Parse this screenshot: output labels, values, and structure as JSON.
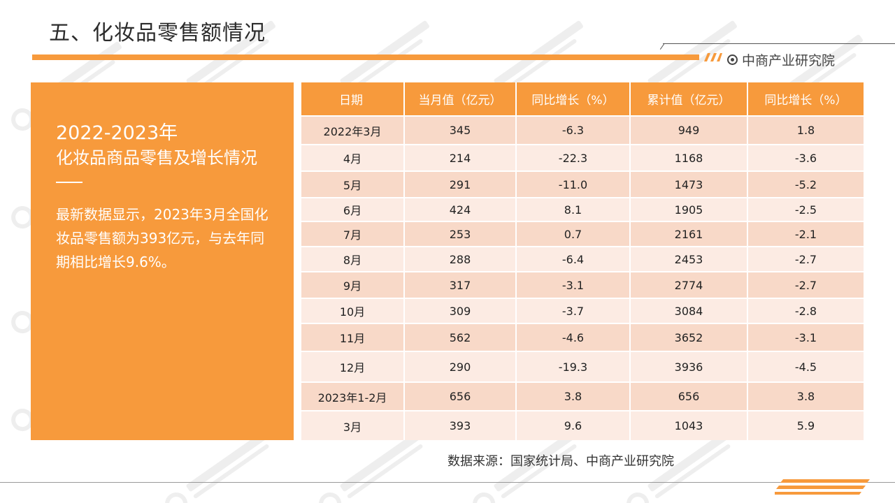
{
  "header": {
    "title": "五、化妆品零售额情况",
    "brand": "中商产业研究院"
  },
  "left_panel": {
    "year_range": "2022-2023年",
    "subtitle": "化妆品商品零售及增长情况",
    "description": "最新数据显示，2023年3月全国化妆品零售额为393亿元，与去年同期相比增长9.6%。"
  },
  "table": {
    "headers": [
      "日期",
      "当月值（亿元）",
      "同比增长（%）",
      "累计值（亿元）",
      "同比增长（%）"
    ],
    "rows": [
      [
        "2022年3月",
        "345",
        "-6.3",
        "949",
        "1.8"
      ],
      [
        "4月",
        "214",
        "-22.3",
        "1168",
        "-3.6"
      ],
      [
        "5月",
        "291",
        "-11.0",
        "1473",
        "-5.2"
      ],
      [
        "6月",
        "424",
        "8.1",
        "1905",
        "-2.5"
      ],
      [
        "7月",
        "253",
        "0.7",
        "2161",
        "-2.1"
      ],
      [
        "8月",
        "288",
        "-6.4",
        "2453",
        "-2.7"
      ],
      [
        "9月",
        "317",
        "-3.1",
        "2774",
        "-2.7"
      ],
      [
        "10月",
        "309",
        "-3.7",
        "3084",
        "-2.8"
      ],
      [
        "11月",
        "562",
        "-4.6",
        "3652",
        "-3.1"
      ],
      [
        "12月",
        "290",
        "-19.3",
        "3936",
        "-4.5"
      ],
      [
        "2023年1-2月",
        "656",
        "3.8",
        "656",
        "3.8"
      ],
      [
        "3月",
        "393",
        "9.6",
        "1043",
        "5.9"
      ]
    ]
  },
  "footer": {
    "source": "数据来源：国家统计局、中商产业研究院"
  },
  "colors": {
    "accent": "#f79a3c",
    "row_dark": "#f8d9c8",
    "row_light": "#fcebe3"
  }
}
